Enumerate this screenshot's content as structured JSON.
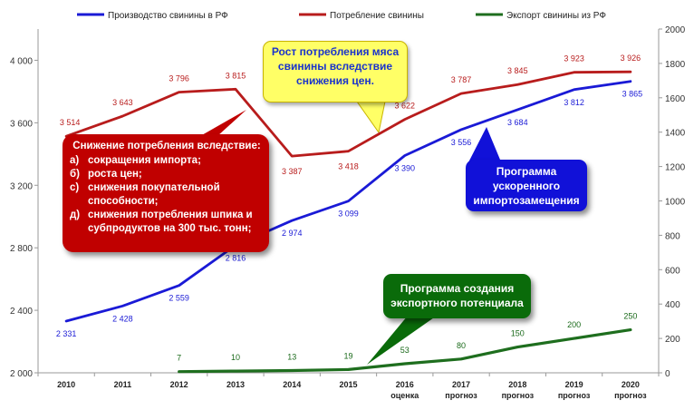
{
  "chart_data": {
    "type": "line",
    "categories": [
      "2010",
      "2011",
      "2012",
      "2013",
      "2014",
      "2015",
      "2016",
      "2017",
      "2018",
      "2019",
      "2020"
    ],
    "category_sublabels": [
      "",
      "",
      "",
      "",
      "",
      "",
      "оценка",
      "прогноз",
      "прогноз",
      "прогноз",
      "прогноз"
    ],
    "y_left": {
      "min": 2000,
      "max": 4200,
      "ticks": [
        2000,
        2400,
        2800,
        3200,
        3600,
        4000
      ],
      "tick_labels": [
        "2 000",
        "2 400",
        "2 800",
        "3 200",
        "3 600",
        "4 000"
      ]
    },
    "y_right": {
      "min": 0,
      "max": 2000,
      "ticks": [
        0,
        200,
        400,
        600,
        800,
        1000,
        1200,
        1400,
        1600,
        1800,
        2000
      ],
      "tick_labels": [
        "0",
        "200",
        "400",
        "600",
        "800",
        "1000",
        "1200",
        "1400",
        "1600",
        "1800",
        "2000"
      ]
    },
    "grid": false,
    "legend_position": "top",
    "series": [
      {
        "name": "Производство свинины в РФ",
        "axis": "left",
        "color": "#1a1ad6",
        "values": [
          2331,
          2428,
          2559,
          2816,
          2974,
          3099,
          3390,
          3556,
          3684,
          3812,
          3865
        ],
        "labels": [
          "2 331",
          "2 428",
          "2 559",
          "2 816",
          "2 974",
          "3 099",
          "3 390",
          "3 556",
          "3 684",
          "3 812",
          "3 865"
        ]
      },
      {
        "name": "Потребление свинины",
        "axis": "left",
        "color": "#b81c1c",
        "values": [
          3514,
          3643,
          3796,
          3815,
          3387,
          3418,
          3622,
          3787,
          3845,
          3923,
          3926
        ],
        "labels": [
          "3 514",
          "3 643",
          "3 796",
          "3 815",
          "3 387",
          "3 418",
          "3 622",
          "3 787",
          "3 845",
          "3 923",
          "3 926"
        ]
      },
      {
        "name": "Экспорт свинины из РФ",
        "axis": "right",
        "color": "#1e6e1e",
        "values": [
          null,
          null,
          7,
          10,
          13,
          19,
          53,
          80,
          150,
          200,
          250
        ],
        "labels": [
          "",
          "",
          "7",
          "10",
          "13",
          "19",
          "53",
          "80",
          "150",
          "200",
          "250"
        ]
      }
    ],
    "annotations": {
      "yellow_lines": [
        "Рост потребления мяса",
        "свинины вследствие",
        "снижения цен."
      ],
      "red_title": "Снижение потребления вследствие:",
      "red_items": [
        {
          "marker": "а)",
          "text": "сокращения импорта;"
        },
        {
          "marker": "б)",
          "text": "роста цен;"
        },
        {
          "marker": "с)",
          "text": "снижения покупательной способности;"
        },
        {
          "marker": "д)",
          "text": "снижения потребления шпика и субпродуктов на 300 тыс. тонн;"
        }
      ],
      "blue_lines": [
        "Программа",
        "ускоренного",
        "импортозамещения"
      ],
      "green_lines": [
        "Программа создания",
        "экспортного потенциала"
      ]
    }
  }
}
